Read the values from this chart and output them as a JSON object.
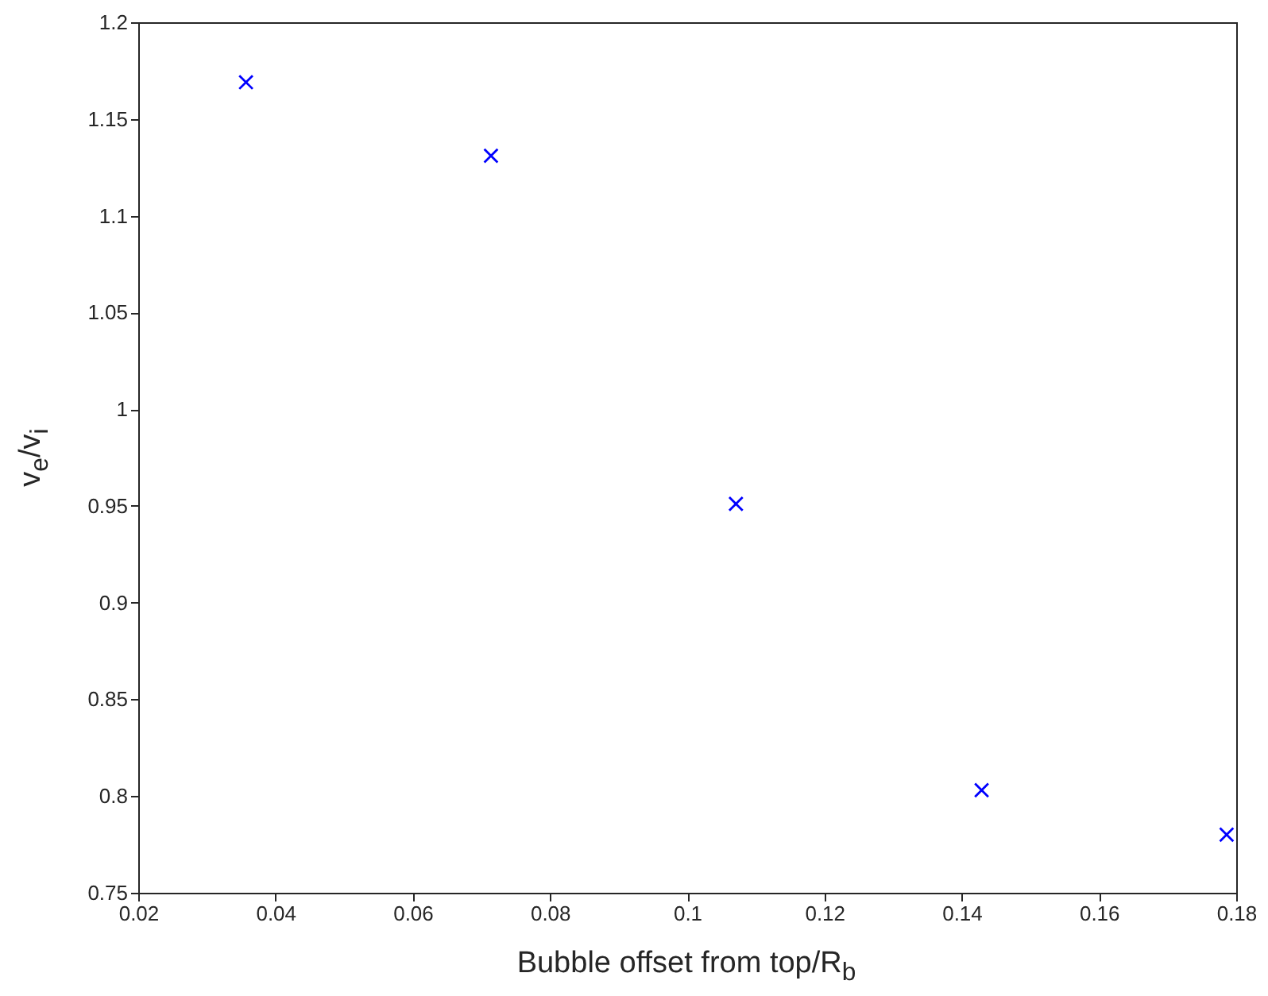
{
  "chart_data": {
    "type": "scatter",
    "xlabel": "Bubble offset from top/R$_{b}$",
    "ylabel": "v$_{e}$/v$_{i}$",
    "x": [
      0.0357,
      0.0714,
      0.1071,
      0.1429,
      0.1786
    ],
    "series": [
      {
        "color": "#0000ff",
        "values": [
          1.169,
          1.131,
          0.951,
          0.803,
          0.78
        ]
      }
    ],
    "xlim": [
      0.02,
      0.18
    ],
    "xticks": [
      0.02,
      0.04,
      0.06,
      0.08,
      0.1,
      0.12,
      0.14,
      0.16,
      0.18
    ],
    "ylim": [
      0.75,
      1.2
    ],
    "yticks": [
      0.75,
      0.8,
      0.85,
      0.9,
      0.95,
      1,
      1.05,
      1.1,
      1.15,
      1.2
    ],
    "grid": false,
    "marker": "cross"
  }
}
